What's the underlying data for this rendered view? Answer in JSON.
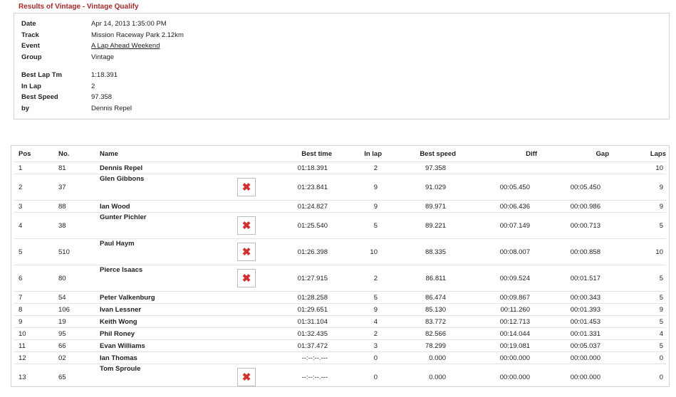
{
  "page_title": "Results of Vintage - Vintage Qualify",
  "summary": [
    {
      "label": "Date",
      "value": "Apr 14, 2013 1:35:00 PM"
    },
    {
      "label": "Track",
      "value": "Mission Raceway Park 2.12km"
    },
    {
      "label": "Event",
      "value": "A Lap Ahead Weekend"
    },
    {
      "label": "Group",
      "value": "Vintage"
    },
    {
      "label": "Best Lap Tm",
      "value": "1:18.391"
    },
    {
      "label": "In Lap",
      "value": "2"
    },
    {
      "label": "Best Speed",
      "value": "97.358"
    },
    {
      "label": "by",
      "value": "Dennis Repel"
    }
  ],
  "columns": [
    "Pos",
    "No.",
    "Name",
    "Best time",
    "In lap",
    "Best speed",
    "Diff",
    "Gap",
    "Laps"
  ],
  "photo_icon": "broken-image-icon",
  "rows": [
    {
      "pos": "1",
      "no": "81",
      "name": "Dennis Repel",
      "photo": false,
      "best_time": "01:18.391",
      "in_lap": "2",
      "best_speed": "97.358",
      "diff": "",
      "gap": "",
      "laps": "10"
    },
    {
      "pos": "2",
      "no": "37",
      "name": "Glen Gibbons",
      "photo": true,
      "best_time": "01:23.841",
      "in_lap": "9",
      "best_speed": "91.029",
      "diff": "00:05.450",
      "gap": "00:05.450",
      "laps": "9"
    },
    {
      "pos": "3",
      "no": "88",
      "name": "Ian Wood",
      "photo": false,
      "best_time": "01:24.827",
      "in_lap": "9",
      "best_speed": "89.971",
      "diff": "00:06.436",
      "gap": "00:00.986",
      "laps": "9"
    },
    {
      "pos": "4",
      "no": "38",
      "name": "Gunter Pichler",
      "photo": true,
      "best_time": "01:25.540",
      "in_lap": "5",
      "best_speed": "89.221",
      "diff": "00:07.149",
      "gap": "00:00.713",
      "laps": "5"
    },
    {
      "pos": "5",
      "no": "510",
      "name": "Paul Haym",
      "photo": true,
      "best_time": "01:26.398",
      "in_lap": "10",
      "best_speed": "88.335",
      "diff": "00:08.007",
      "gap": "00:00.858",
      "laps": "10"
    },
    {
      "pos": "6",
      "no": "80",
      "name": "Pierce Isaacs",
      "photo": true,
      "best_time": "01:27.915",
      "in_lap": "2",
      "best_speed": "86.811",
      "diff": "00:09.524",
      "gap": "00:01.517",
      "laps": "5"
    },
    {
      "pos": "7",
      "no": "54",
      "name": "Peter Valkenburg",
      "photo": false,
      "best_time": "01:28.258",
      "in_lap": "5",
      "best_speed": "86.474",
      "diff": "00:09.867",
      "gap": "00:00.343",
      "laps": "5"
    },
    {
      "pos": "8",
      "no": "106",
      "name": "Ivan Lessner",
      "photo": false,
      "best_time": "01:29.651",
      "in_lap": "9",
      "best_speed": "85.130",
      "diff": "00:11.260",
      "gap": "00:01.393",
      "laps": "9"
    },
    {
      "pos": "9",
      "no": "19",
      "name": "Keith Wong",
      "photo": false,
      "best_time": "01:31.104",
      "in_lap": "4",
      "best_speed": "83.772",
      "diff": "00:12.713",
      "gap": "00:01.453",
      "laps": "5"
    },
    {
      "pos": "10",
      "no": "95",
      "name": "Phil Roney",
      "photo": false,
      "best_time": "01:32.435",
      "in_lap": "2",
      "best_speed": "82.566",
      "diff": "00:14.044",
      "gap": "00:01.331",
      "laps": "4"
    },
    {
      "pos": "11",
      "no": "66",
      "name": "Evan Williams",
      "photo": false,
      "best_time": "01:37.472",
      "in_lap": "3",
      "best_speed": "78.299",
      "diff": "00:19.081",
      "gap": "00:05.037",
      "laps": "5"
    },
    {
      "pos": "12",
      "no": "02",
      "name": "Ian Thomas",
      "photo": false,
      "best_time": "--:--:--.---",
      "in_lap": "0",
      "best_speed": "0.000",
      "diff": "00:00.000",
      "gap": "00:00.000",
      "laps": "0"
    },
    {
      "pos": "13",
      "no": "65",
      "name": "Tom Sproule",
      "photo": true,
      "best_time": "--:--:--.---",
      "in_lap": "0",
      "best_speed": "0.000",
      "diff": "00:00.000",
      "gap": "00:00.000",
      "laps": "0"
    }
  ]
}
